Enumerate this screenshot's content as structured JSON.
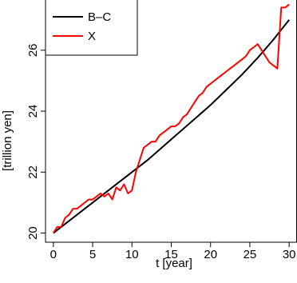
{
  "chart_data": {
    "type": "line",
    "xlabel": "t [year]",
    "ylabel": "[trillion yen]",
    "xlim": [
      -1,
      31
    ],
    "ylim": [
      19.7,
      27.7
    ],
    "xticks": [
      0,
      5,
      10,
      15,
      20,
      25,
      30
    ],
    "xtick_labels": [
      "0",
      "5",
      "10",
      "15",
      "20",
      "25",
      "30"
    ],
    "yticks": [
      20,
      22,
      24,
      26
    ],
    "ytick_labels": [
      "20",
      "22",
      "24",
      "26"
    ],
    "grid": false,
    "legend_position": "top-left",
    "series": [
      {
        "name": "B–C",
        "color": "#000000",
        "x": [
          0,
          2,
          4,
          6,
          8,
          10,
          12,
          14,
          16,
          18,
          20,
          22,
          24,
          26,
          28,
          30
        ],
        "y": [
          20.0,
          20.4,
          20.8,
          21.2,
          21.6,
          22.0,
          22.4,
          22.85,
          23.3,
          23.75,
          24.2,
          24.7,
          25.2,
          25.75,
          26.35,
          27.0
        ]
      },
      {
        "name": "X",
        "color": "#ff0000",
        "x": [
          0,
          0.5,
          1,
          1.5,
          2,
          2.5,
          3,
          3.5,
          4,
          4.5,
          5,
          5.5,
          6,
          6.5,
          7,
          7.5,
          8,
          8.5,
          9,
          9.5,
          10,
          10.5,
          11,
          11.5,
          12,
          12.5,
          13,
          13.5,
          14,
          14.5,
          15,
          15.5,
          16,
          16.5,
          17,
          17.5,
          18,
          18.5,
          19,
          19.5,
          20,
          20.5,
          21,
          21.5,
          22,
          22.5,
          23,
          23.5,
          24,
          24.5,
          25,
          25.5,
          26,
          26.5,
          27,
          27.5,
          28,
          28.5,
          29,
          29.5,
          30
        ],
        "y": [
          20.0,
          20.2,
          20.2,
          20.5,
          20.6,
          20.8,
          20.8,
          20.9,
          21.0,
          21.1,
          21.1,
          21.2,
          21.3,
          21.2,
          21.3,
          21.1,
          21.5,
          21.4,
          21.6,
          21.3,
          21.4,
          22.0,
          22.4,
          22.8,
          22.9,
          23.0,
          23.0,
          23.2,
          23.3,
          23.4,
          23.5,
          23.5,
          23.6,
          23.8,
          23.9,
          24.1,
          24.3,
          24.5,
          24.6,
          24.8,
          24.9,
          25.0,
          25.1,
          25.2,
          25.3,
          25.4,
          25.5,
          25.6,
          25.7,
          25.8,
          26.0,
          26.1,
          26.2,
          26.0,
          25.8,
          25.6,
          25.5,
          25.4,
          27.4,
          27.4,
          27.5
        ]
      }
    ]
  }
}
